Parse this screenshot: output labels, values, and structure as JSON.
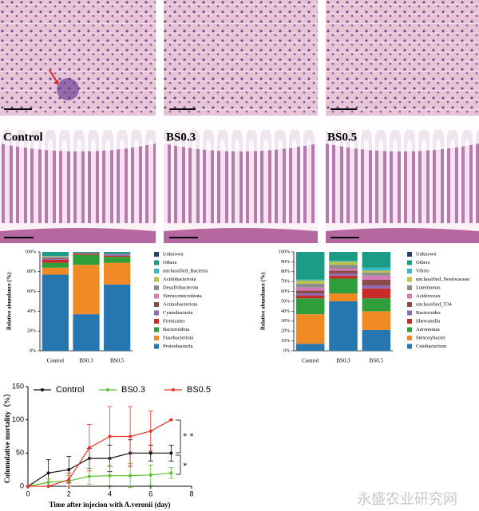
{
  "panels": {
    "labels": [
      "Control",
      "BS0.3",
      "BS0.5"
    ]
  },
  "watermark": "永盛农业研究网",
  "chart_data": [
    {
      "type": "bar",
      "stacked": true,
      "ylabel": "Relative abundance (%)",
      "categories": [
        "Control",
        "BS0.3",
        "BS0.5"
      ],
      "ylim": [
        0,
        100
      ],
      "yticks": [
        {
          "value": 0,
          "label": "0%"
        },
        {
          "value": 20,
          "label": "20%"
        },
        {
          "value": 40,
          "label": "40%"
        },
        {
          "value": 60,
          "label": "60%"
        },
        {
          "value": 80,
          "label": "80%"
        },
        {
          "value": 100,
          "label": "100%"
        }
      ],
      "series": [
        {
          "name": "Proteobacteria",
          "color": "#2677b0",
          "values": [
            77,
            37,
            67
          ]
        },
        {
          "name": "Fusobacteriota",
          "color": "#f08a24",
          "values": [
            7,
            50,
            22
          ]
        },
        {
          "name": "Bacteroidota",
          "color": "#2e9e3a",
          "values": [
            5,
            10,
            6
          ]
        },
        {
          "name": "Firmicutes",
          "color": "#c92a2a",
          "values": [
            3,
            1,
            1
          ]
        },
        {
          "name": "Cyanobacteria",
          "color": "#8b6bb5",
          "values": [
            1,
            0.5,
            1
          ]
        },
        {
          "name": "Actinobacteriota",
          "color": "#8c4b4b",
          "values": [
            1,
            0.5,
            0.5
          ]
        },
        {
          "name": "Verrucomicrobiota",
          "color": "#d97ab8",
          "values": [
            0.5,
            0,
            0.5
          ]
        },
        {
          "name": "Desulfobacterota",
          "color": "#8c8c8c",
          "values": [
            0.5,
            0,
            0
          ]
        },
        {
          "name": "Acidobacteriota",
          "color": "#c2c24a",
          "values": [
            0.5,
            0,
            0
          ]
        },
        {
          "name": "unclassified_Bacteria",
          "color": "#38b9c9",
          "values": [
            0.5,
            0,
            0
          ]
        },
        {
          "name": "Others",
          "color": "#1a9c86",
          "values": [
            4,
            1,
            2
          ]
        },
        {
          "name": "Unknown",
          "color": "#2b3f73",
          "values": [
            0,
            0,
            0
          ]
        }
      ]
    },
    {
      "type": "bar",
      "stacked": true,
      "ylabel": "Relative abundance (%)",
      "categories": [
        "Control",
        "BS0.3",
        "BS0.5"
      ],
      "ylim": [
        0,
        100
      ],
      "yticks": [
        {
          "value": 0,
          "label": "0%"
        },
        {
          "value": 10,
          "label": "10%"
        },
        {
          "value": 20,
          "label": "20%"
        },
        {
          "value": 30,
          "label": "30%"
        },
        {
          "value": 40,
          "label": "40%"
        },
        {
          "value": 50,
          "label": "50%"
        },
        {
          "value": 60,
          "label": "60%"
        },
        {
          "value": 70,
          "label": "70%"
        },
        {
          "value": 80,
          "label": "80%"
        },
        {
          "value": 90,
          "label": "90%"
        },
        {
          "value": 100,
          "label": "100%"
        }
      ],
      "series": [
        {
          "name": "Cetobacterium",
          "color": "#2677b0",
          "values": [
            7,
            50,
            21
          ]
        },
        {
          "name": "Stenoxybacter",
          "color": "#f08a24",
          "values": [
            30,
            8,
            19
          ]
        },
        {
          "name": "Aeromonas",
          "color": "#2e9e3a",
          "values": [
            16,
            15,
            13
          ]
        },
        {
          "name": "Shewanella",
          "color": "#c92a2a",
          "values": [
            3,
            3,
            10
          ]
        },
        {
          "name": "Bacteroides",
          "color": "#8b6bb5",
          "values": [
            2,
            2,
            3
          ]
        },
        {
          "name": "unclassified_T34",
          "color": "#8c4b4b",
          "values": [
            3,
            3,
            6
          ]
        },
        {
          "name": "Acidovorax",
          "color": "#d97ab8",
          "values": [
            3,
            2,
            4
          ]
        },
        {
          "name": "Luteimonas",
          "color": "#8c8c8c",
          "values": [
            4,
            4,
            3
          ]
        },
        {
          "name": "unclassified_Nostocaceae",
          "color": "#c2c24a",
          "values": [
            3,
            3,
            2
          ]
        },
        {
          "name": "Vibrio",
          "color": "#38b9c9",
          "values": [
            1,
            1,
            3
          ]
        },
        {
          "name": "Others",
          "color": "#1a9c86",
          "values": [
            28,
            9,
            16
          ]
        },
        {
          "name": "Unknown",
          "color": "#2b3f73",
          "values": [
            0,
            0,
            0
          ]
        }
      ]
    },
    {
      "type": "line",
      "ylabel": "Columulative mortality（%）",
      "xlabel": "Time after injecion with A.veronii  (day)",
      "x": [
        0,
        1,
        2,
        3,
        4,
        5,
        6,
        7
      ],
      "xlim": [
        0,
        8
      ],
      "xticks": [
        0,
        2,
        4,
        6,
        8
      ],
      "ylim": [
        0,
        150
      ],
      "yticks": [
        0,
        50,
        100,
        150
      ],
      "annotations": [
        "* *",
        "*"
      ],
      "series": [
        {
          "name": "Control",
          "color": "#111111",
          "values": [
            0,
            20,
            25,
            42,
            42,
            50,
            50,
            50
          ],
          "errors": [
            0,
            20,
            20,
            15,
            20,
            20,
            12,
            12
          ]
        },
        {
          "name": "BS0.3",
          "color": "#5cbf2a",
          "values": [
            0,
            6,
            8,
            15,
            16,
            16,
            17,
            20
          ],
          "errors": [
            0,
            5,
            8,
            12,
            15,
            18,
            15,
            8
          ]
        },
        {
          "name": "BS0.5",
          "color": "#e8352a",
          "values": [
            0,
            0,
            10,
            58,
            75,
            75,
            83,
            100
          ],
          "errors": [
            0,
            0,
            10,
            35,
            45,
            45,
            30,
            0
          ]
        }
      ]
    }
  ]
}
